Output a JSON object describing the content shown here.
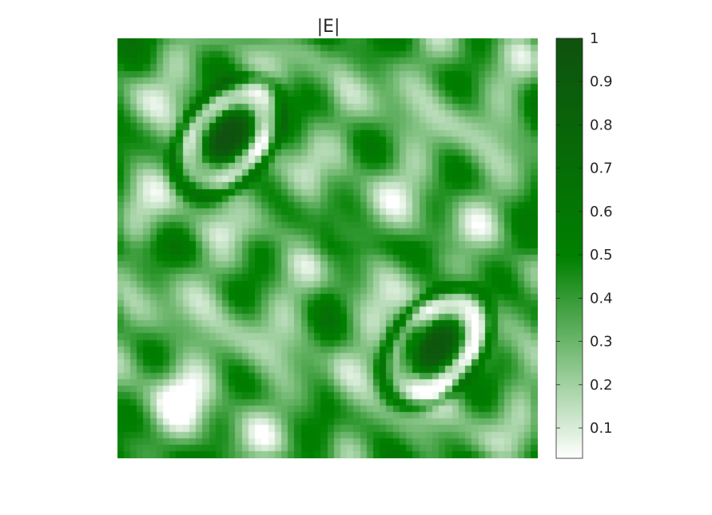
{
  "chart_data": {
    "type": "heatmap",
    "title": "|E|",
    "xlabel": "",
    "ylabel": "",
    "axes_visible": false,
    "grid": false,
    "colormap": {
      "low_color": "#ffffff",
      "mid_color": "#008000",
      "high_color": "#0f520f"
    },
    "colorbar": {
      "location": "right",
      "limits": [
        0.03,
        1.0
      ],
      "ticks": [
        0.1,
        0.2,
        0.3,
        0.4,
        0.5,
        0.6,
        0.7,
        0.8,
        0.9,
        1.0
      ],
      "tick_labels": [
        "0.1",
        "0.2",
        "0.3",
        "0.4",
        "0.5",
        "0.6",
        "0.7",
        "0.8",
        "0.9",
        "1"
      ]
    },
    "grid_size": [
      64,
      64
    ],
    "features": [
      {
        "kind": "hot-spot",
        "quadrant": "top-left",
        "peak_value": 1.0
      },
      {
        "kind": "hot-spot",
        "quadrant": "bottom-right",
        "peak_value": 0.95
      }
    ]
  }
}
